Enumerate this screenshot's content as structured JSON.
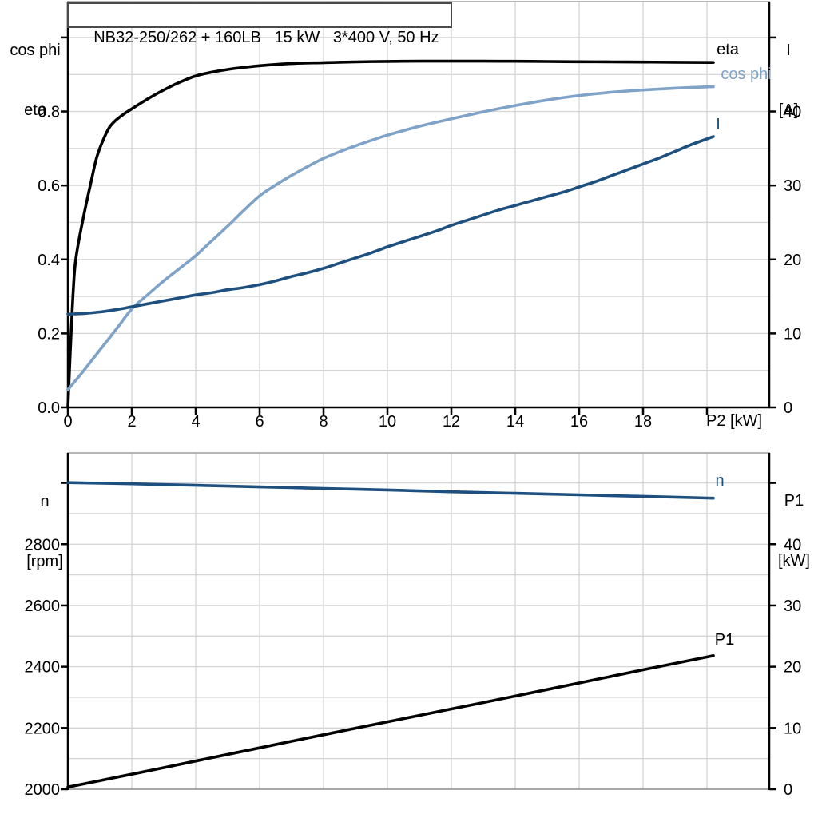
{
  "title_box": {
    "text": "NB32-250/262 + 160LB   15 kW   3*400 V, 50 Hz"
  },
  "colors": {
    "eta": "#000000",
    "cos_phi": "#7ea2c8",
    "current": "#1d4f7f",
    "speed": "#1d4f7f",
    "p1": "#000000",
    "grid": "#d4d4d4",
    "axis": "#000000",
    "border": "#8a8a8a"
  },
  "chart_data": [
    {
      "type": "line",
      "name": "motor electrical curves",
      "x_axis": {
        "label": "P2 [kW]",
        "min": 0,
        "max": 21.95,
        "tick_values": [
          0,
          2,
          4,
          6,
          8,
          10,
          12,
          14,
          16,
          18
        ],
        "tick_labels": [
          "0",
          "2",
          "4",
          "6",
          "8",
          "10",
          "12",
          "14",
          "16",
          "18"
        ],
        "unlabeled_ticks": [
          20
        ],
        "grid_min": 2,
        "grid_max": 20,
        "grid_step": 2
      },
      "left_axis": {
        "title": [
          "cos phi",
          "eta"
        ],
        "min": 0,
        "max": 1.097,
        "tick_values": [
          0,
          0.2,
          0.4,
          0.6,
          0.8
        ],
        "tick_labels": [
          "0.0",
          "0.2",
          "0.4",
          "0.6",
          "0.8"
        ],
        "unlabeled_ticks": [
          1.0
        ],
        "grid_min": 0.1,
        "grid_max": 1.0,
        "grid_step": 0.1
      },
      "right_axis": {
        "title": [
          "I",
          "[A]"
        ],
        "min": 0,
        "max": 54.85,
        "tick_values": [
          0,
          10,
          20,
          30,
          40
        ],
        "tick_labels": [
          "0",
          "10",
          "20",
          "30",
          "40"
        ],
        "unlabeled_ticks": [
          50
        ]
      },
      "series": [
        {
          "name": "eta",
          "axis": "left",
          "color": "#000000",
          "points": [
            [
              0,
              0
            ],
            [
              0.1,
              0.2
            ],
            [
              0.2,
              0.36
            ],
            [
              0.3,
              0.43
            ],
            [
              0.5,
              0.52
            ],
            [
              0.7,
              0.6
            ],
            [
              0.9,
              0.675
            ],
            [
              1.1,
              0.722
            ],
            [
              1.3,
              0.757
            ],
            [
              1.5,
              0.776
            ],
            [
              1.75,
              0.793
            ],
            [
              2,
              0.807
            ],
            [
              2.5,
              0.834
            ],
            [
              3,
              0.858
            ],
            [
              3.5,
              0.879
            ],
            [
              4,
              0.896
            ],
            [
              4.5,
              0.906
            ],
            [
              5,
              0.9135
            ],
            [
              5.5,
              0.919
            ],
            [
              6,
              0.9235
            ],
            [
              7,
              0.9295
            ],
            [
              8,
              0.932
            ],
            [
              9,
              0.934
            ],
            [
              10,
              0.9353
            ],
            [
              11,
              0.9358
            ],
            [
              12,
              0.936
            ],
            [
              13,
              0.936
            ],
            [
              14,
              0.9356
            ],
            [
              15,
              0.935
            ],
            [
              16,
              0.9345
            ],
            [
              17,
              0.934
            ],
            [
              18,
              0.9336
            ],
            [
              19,
              0.933
            ],
            [
              20.2,
              0.9325
            ]
          ]
        },
        {
          "name": "cos phi",
          "axis": "left",
          "color": "#7ea2c8",
          "points": [
            [
              0,
              0.048
            ],
            [
              0.5,
              0.1
            ],
            [
              1,
              0.155
            ],
            [
              1.5,
              0.21
            ],
            [
              2,
              0.266
            ],
            [
              2.5,
              0.305
            ],
            [
              3,
              0.342
            ],
            [
              3.5,
              0.376
            ],
            [
              4,
              0.41
            ],
            [
              4.5,
              0.45
            ],
            [
              5,
              0.49
            ],
            [
              5.5,
              0.532
            ],
            [
              6,
              0.572
            ],
            [
              6.5,
              0.601
            ],
            [
              7,
              0.627
            ],
            [
              7.5,
              0.651
            ],
            [
              8,
              0.673
            ],
            [
              8.5,
              0.691
            ],
            [
              9,
              0.707
            ],
            [
              9.5,
              0.722
            ],
            [
              10,
              0.736
            ],
            [
              11,
              0.76
            ],
            [
              12,
              0.78
            ],
            [
              13,
              0.799
            ],
            [
              14,
              0.816
            ],
            [
              15,
              0.831
            ],
            [
              16,
              0.843
            ],
            [
              17,
              0.852
            ],
            [
              18,
              0.858
            ],
            [
              19,
              0.863
            ],
            [
              20.2,
              0.867
            ]
          ]
        },
        {
          "name": "I",
          "axis": "right",
          "color": "#1d4f7f",
          "points": [
            [
              0,
              12.6
            ],
            [
              0.5,
              12.7
            ],
            [
              1,
              12.9
            ],
            [
              1.5,
              13.2
            ],
            [
              2,
              13.6
            ],
            [
              2.5,
              14.0
            ],
            [
              3,
              14.4
            ],
            [
              3.5,
              14.8
            ],
            [
              4,
              15.2
            ],
            [
              4.5,
              15.5
            ],
            [
              5,
              15.9
            ],
            [
              5.5,
              16.2
            ],
            [
              6,
              16.6
            ],
            [
              6.5,
              17.1
            ],
            [
              7,
              17.7
            ],
            [
              7.5,
              18.2
            ],
            [
              8,
              18.8
            ],
            [
              8.5,
              19.5
            ],
            [
              9,
              20.2
            ],
            [
              9.5,
              20.9
            ],
            [
              10,
              21.7
            ],
            [
              10.5,
              22.4
            ],
            [
              11,
              23.1
            ],
            [
              11.5,
              23.8
            ],
            [
              12,
              24.6
            ],
            [
              12.5,
              25.3
            ],
            [
              13,
              26.0
            ],
            [
              13.5,
              26.7
            ],
            [
              14,
              27.3
            ],
            [
              14.5,
              27.9
            ],
            [
              15,
              28.5
            ],
            [
              15.5,
              29.1
            ],
            [
              16,
              29.8
            ],
            [
              16.5,
              30.5
            ],
            [
              17,
              31.3
            ],
            [
              17.5,
              32.1
            ],
            [
              18,
              32.9
            ],
            [
              18.5,
              33.7
            ],
            [
              19,
              34.6
            ],
            [
              19.5,
              35.5
            ],
            [
              20.2,
              36.6
            ]
          ]
        }
      ]
    },
    {
      "type": "line",
      "name": "motor mechanical curves",
      "x_axis": {
        "label": "",
        "min": 0,
        "max": 21.95,
        "tick_values": [],
        "tick_labels": [],
        "unlabeled_ticks": [],
        "grid_min": 2,
        "grid_max": 20,
        "grid_step": 2
      },
      "left_axis": {
        "title": [
          "n",
          "[rpm]"
        ],
        "min": 2000,
        "max": 3098,
        "tick_values": [
          2000,
          2200,
          2400,
          2600,
          2800
        ],
        "tick_labels": [
          "2000",
          "2200",
          "2400",
          "2600",
          "2800"
        ],
        "unlabeled_ticks": [
          3000
        ],
        "grid_min": 2100,
        "grid_max": 3000,
        "grid_step": 100
      },
      "right_axis": {
        "title": [
          "P1",
          "[kW]"
        ],
        "min": 0,
        "max": 54.9,
        "tick_values": [
          0,
          10,
          20,
          30,
          40
        ],
        "tick_labels": [
          "0",
          "10",
          "20",
          "30",
          "40"
        ],
        "unlabeled_ticks": [
          50
        ]
      },
      "series": [
        {
          "name": "n",
          "axis": "left",
          "color": "#1d4f7f",
          "points": [
            [
              0,
              3001
            ],
            [
              2,
              2997
            ],
            [
              4,
              2992
            ],
            [
              6,
              2987
            ],
            [
              8,
              2982
            ],
            [
              10,
              2977
            ],
            [
              12,
              2971
            ],
            [
              14,
              2966
            ],
            [
              16,
              2961
            ],
            [
              18,
              2956
            ],
            [
              20.2,
              2950
            ]
          ]
        },
        {
          "name": "P1",
          "axis": "right",
          "color": "#000000",
          "points": [
            [
              0,
              0.35
            ],
            [
              2,
              2.45
            ],
            [
              4,
              4.6
            ],
            [
              6,
              6.75
            ],
            [
              8,
              8.9
            ],
            [
              10,
              11.0
            ],
            [
              12,
              13.1
            ],
            [
              14,
              15.2
            ],
            [
              16,
              17.35
            ],
            [
              18,
              19.5
            ],
            [
              20.2,
              21.8
            ]
          ]
        }
      ]
    }
  ]
}
